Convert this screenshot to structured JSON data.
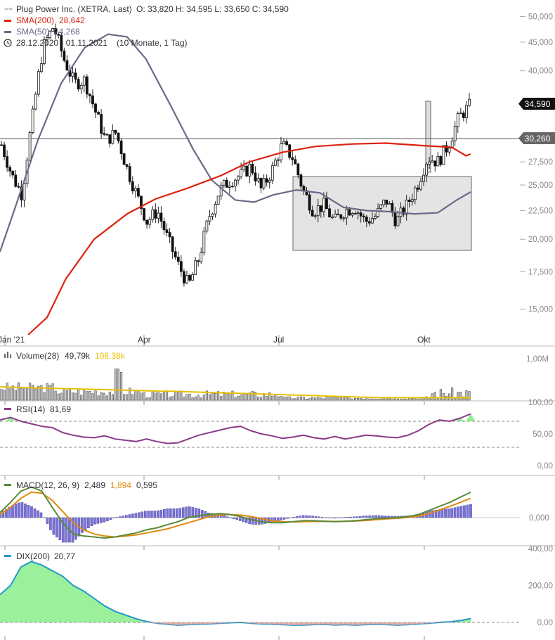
{
  "header": {
    "instrument": "Plug Power Inc. (XETRA, Last)",
    "ohlc": "O: 33,820  H: 34,595  L: 33,650  C: 34,590",
    "sma200_label": "SMA(200)",
    "sma200_value": "28,642",
    "sma50_label": "SMA(50)",
    "sma50_value": "24,268",
    "range_label": "28.12.2020 - 01.11.2021",
    "range_detail": "(10 Monate, 1 Tag)"
  },
  "price_tags": {
    "last": "34,590",
    "line": "30,260"
  },
  "colors": {
    "sma200": "#dd2211",
    "sma50": "#6a6a88",
    "rsi": "#8a3a8a",
    "macd": "#5a8a3a",
    "signal": "#e08a10",
    "histogram": "#7a70dd",
    "dix": "#2299cc",
    "dix_pos": "#90ee90",
    "dix_neg": "#f0a0a8",
    "volume_avg": "#e8c000"
  },
  "panels": {
    "volume": {
      "label": "Volume(28)",
      "value": "49,79k",
      "avg_value": "106,38k"
    },
    "rsi": {
      "label": "RSI(14)",
      "value": "81,69"
    },
    "macd": {
      "label": "MACD(12, 26, 9)",
      "v1": "2,489",
      "v2": "1,894",
      "v3": "0,595"
    },
    "dix": {
      "label": "DIX(200)",
      "value": "20,77"
    }
  },
  "chart_data": {
    "type": "candlestick",
    "title": "Plug Power Inc. (XETRA, Last)",
    "x_ticks": [
      "Jan '21",
      "Apr",
      "Jul",
      "Okt"
    ],
    "price_axis": {
      "scale": "log",
      "ticks": [
        "50,000",
        "45,000",
        "40,000",
        "35,000",
        "30,000",
        "27,500",
        "25,000",
        "22,500",
        "20,000",
        "17,500",
        "15,000"
      ],
      "tick_values": [
        50,
        45,
        40,
        35,
        30,
        27.5,
        25,
        22.5,
        20,
        17.5,
        15
      ],
      "range": [
        13.5,
        52
      ]
    },
    "close_series": [
      29.5,
      26.0,
      24.0,
      33.0,
      44.0,
      48.0,
      42.0,
      38.0,
      38.5,
      34.0,
      30.0,
      31.0,
      27.0,
      24.0,
      21.5,
      22.5,
      20.0,
      18.0,
      16.5,
      18.5,
      22.0,
      24.5,
      25.5,
      26.0,
      27.0,
      24.5,
      26.5,
      29.5,
      28.0,
      24.5,
      22.5,
      23.0,
      21.5,
      22.5,
      22.8,
      21.5,
      22.0,
      23.5,
      21.5,
      23.0,
      25.0,
      28.0,
      27.5,
      29.5,
      33.0,
      34.6
    ],
    "sma200_series": [
      {
        "x": 0.06,
        "y": 13.5
      },
      {
        "x": 0.1,
        "y": 14.5
      },
      {
        "x": 0.14,
        "y": 17.0
      },
      {
        "x": 0.2,
        "y": 20.0
      },
      {
        "x": 0.27,
        "y": 22.2
      },
      {
        "x": 0.33,
        "y": 23.6
      },
      {
        "x": 0.4,
        "y": 24.7
      },
      {
        "x": 0.47,
        "y": 26.0
      },
      {
        "x": 0.53,
        "y": 27.5
      },
      {
        "x": 0.6,
        "y": 28.6
      },
      {
        "x": 0.67,
        "y": 29.3
      },
      {
        "x": 0.75,
        "y": 29.6
      },
      {
        "x": 0.82,
        "y": 29.7
      },
      {
        "x": 0.9,
        "y": 29.4
      },
      {
        "x": 0.96,
        "y": 29.2
      },
      {
        "x": 0.99,
        "y": 28.2
      },
      {
        "x": 1.0,
        "y": 28.4
      }
    ],
    "sma50_series": [
      {
        "x": 0.0,
        "y": 19.0
      },
      {
        "x": 0.03,
        "y": 22.5
      },
      {
        "x": 0.08,
        "y": 30.0
      },
      {
        "x": 0.13,
        "y": 38.0
      },
      {
        "x": 0.18,
        "y": 44.0
      },
      {
        "x": 0.23,
        "y": 46.5
      },
      {
        "x": 0.27,
        "y": 46.0
      },
      {
        "x": 0.31,
        "y": 42.0
      },
      {
        "x": 0.36,
        "y": 35.0
      },
      {
        "x": 0.41,
        "y": 29.0
      },
      {
        "x": 0.45,
        "y": 25.5
      },
      {
        "x": 0.5,
        "y": 23.5
      },
      {
        "x": 0.54,
        "y": 23.3
      },
      {
        "x": 0.58,
        "y": 24.0
      },
      {
        "x": 0.63,
        "y": 24.5
      },
      {
        "x": 0.68,
        "y": 24.2
      },
      {
        "x": 0.73,
        "y": 22.8
      },
      {
        "x": 0.78,
        "y": 22.5
      },
      {
        "x": 0.83,
        "y": 22.4
      },
      {
        "x": 0.88,
        "y": 22.2
      },
      {
        "x": 0.93,
        "y": 22.3
      },
      {
        "x": 0.97,
        "y": 23.5
      },
      {
        "x": 1.0,
        "y": 24.3
      }
    ],
    "volume": {
      "axis_ticks": [
        "1,00M"
      ],
      "axis_values": [
        1.0
      ]
    },
    "rsi": {
      "axis_ticks": [
        "100,00",
        "50,00",
        "0,00"
      ],
      "axis_values": [
        100,
        50,
        0
      ],
      "levels": [
        70,
        30
      ],
      "series": [
        72,
        76,
        70,
        66,
        62,
        60,
        52,
        48,
        45,
        44,
        47,
        42,
        40,
        38,
        42,
        38,
        35,
        36,
        42,
        48,
        52,
        56,
        60,
        62,
        55,
        50,
        47,
        43,
        45,
        48,
        44,
        42,
        46,
        42,
        45,
        48,
        47,
        45,
        44,
        48,
        55,
        65,
        72,
        70,
        75,
        81.69
      ]
    },
    "macd": {
      "axis_ticks": [
        "0,000"
      ],
      "axis_values": [
        0
      ],
      "series": [
        0.5,
        1.5,
        2.6,
        3.0,
        2.6,
        1.0,
        -0.5,
        -1.6,
        -1.8,
        -1.9,
        -2.0,
        -1.9,
        -1.7,
        -1.5,
        -1.2,
        -1.0,
        -0.7,
        -0.4,
        0.0,
        0.2,
        0.3,
        0.4,
        0.3,
        0.1,
        -0.2,
        -0.4,
        -0.5,
        -0.5,
        -0.4,
        -0.3,
        -0.3,
        -0.35,
        -0.4,
        -0.35,
        -0.3,
        -0.2,
        -0.1,
        -0.05,
        0.0,
        0.1,
        0.3,
        0.7,
        1.1,
        1.5,
        2.0,
        2.489
      ],
      "signal": [
        0.3,
        1.0,
        1.9,
        2.5,
        2.4,
        1.7,
        0.6,
        -0.5,
        -1.2,
        -1.6,
        -1.8,
        -1.9,
        -1.8,
        -1.7,
        -1.5,
        -1.3,
        -1.1,
        -0.8,
        -0.5,
        -0.2,
        0.1,
        0.25,
        0.3,
        0.25,
        0.1,
        -0.1,
        -0.3,
        -0.4,
        -0.42,
        -0.4,
        -0.37,
        -0.36,
        -0.37,
        -0.37,
        -0.34,
        -0.28,
        -0.2,
        -0.12,
        -0.06,
        0.02,
        0.15,
        0.4,
        0.75,
        1.1,
        1.5,
        1.894
      ]
    },
    "dix": {
      "axis_ticks": [
        "400,00",
        "200,00",
        "0,00"
      ],
      "axis_values": [
        400,
        200,
        0
      ],
      "series": [
        150,
        200,
        300,
        330,
        310,
        280,
        250,
        200,
        170,
        130,
        90,
        60,
        40,
        20,
        5,
        -5,
        -10,
        -15,
        -12,
        -10,
        -8,
        -5,
        -2,
        0,
        -5,
        -8,
        -10,
        -12,
        -15,
        -14,
        -12,
        -10,
        -14,
        -12,
        -15,
        -12,
        -10,
        -12,
        -15,
        -12,
        -8,
        -5,
        0,
        3,
        10,
        20.77
      ]
    }
  }
}
